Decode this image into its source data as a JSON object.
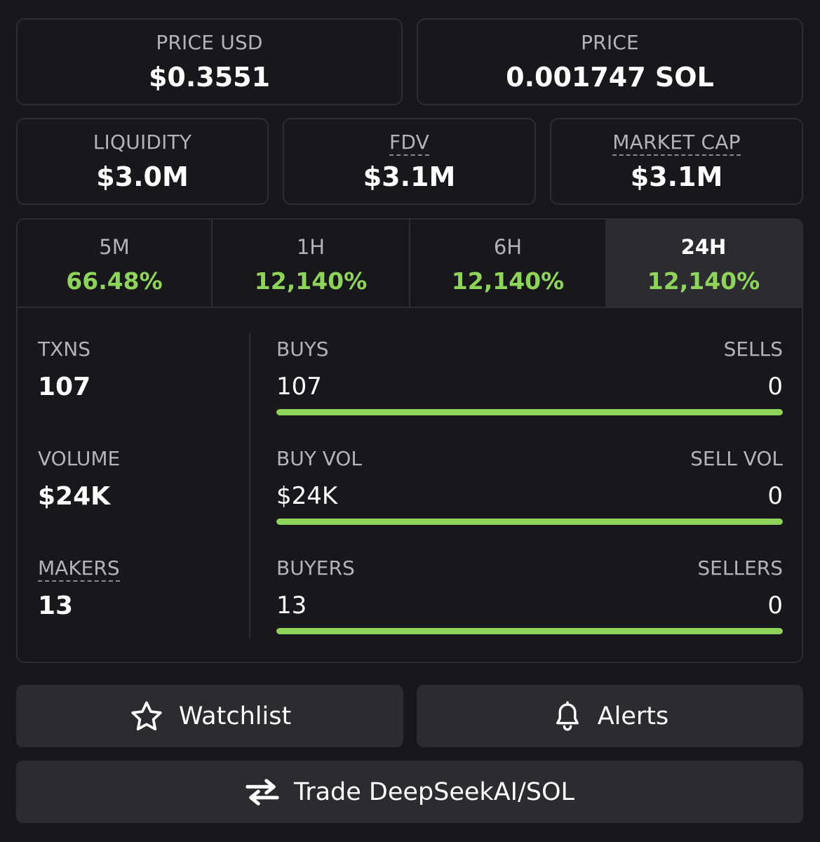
{
  "price_usd": {
    "label": "PRICE USD",
    "value": "$0.3551"
  },
  "price_native": {
    "label": "PRICE",
    "value": "0.001747 SOL"
  },
  "liquidity": {
    "label": "LIQUIDITY",
    "value": "$3.0M"
  },
  "fdv": {
    "label": "FDV",
    "value": "$3.1M"
  },
  "market_cap": {
    "label": "MARKET CAP",
    "value": "$3.1M"
  },
  "timeframes": [
    {
      "label": "5M",
      "change": "66.48%"
    },
    {
      "label": "1H",
      "change": "12,140%"
    },
    {
      "label": "6H",
      "change": "12,140%"
    },
    {
      "label": "24H",
      "change": "12,140%"
    }
  ],
  "selected_timeframe": "24H",
  "stats": {
    "txns": {
      "label": "TXNS",
      "value": "107"
    },
    "volume": {
      "label": "VOLUME",
      "value": "$24K"
    },
    "makers": {
      "label": "MAKERS",
      "value": "13"
    }
  },
  "splits": {
    "txns": {
      "left_label": "BUYS",
      "right_label": "SELLS",
      "left_value": "107",
      "right_value": "0",
      "buy_fraction": 1.0
    },
    "volume": {
      "left_label": "BUY VOL",
      "right_label": "SELL VOL",
      "left_value": "$24K",
      "right_value": "0",
      "buy_fraction": 1.0
    },
    "makers": {
      "left_label": "BUYERS",
      "right_label": "SELLERS",
      "left_value": "13",
      "right_value": "0",
      "buy_fraction": 1.0
    }
  },
  "actions": {
    "watchlist": "Watchlist",
    "alerts": "Alerts",
    "trade": "Trade DeepSeekAI/SOL"
  },
  "icons": {
    "watchlist": "star-icon",
    "alerts": "bell-icon",
    "trade": "swap-arrows-icon"
  },
  "colors": {
    "positive": "#8ed35a",
    "background": "#18181c",
    "card_border": "#2c2c31",
    "button_bg": "#2b2b30"
  }
}
